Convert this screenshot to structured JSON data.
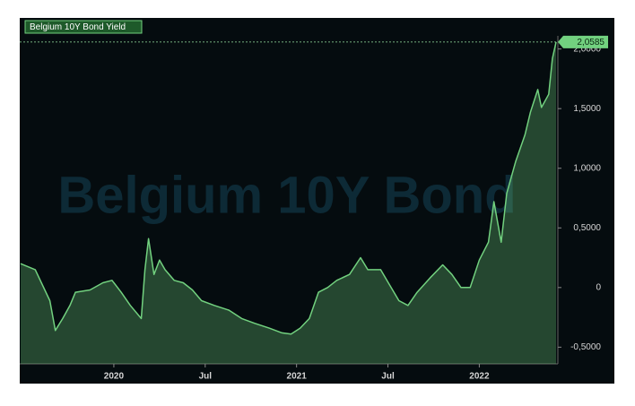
{
  "chart_data": {
    "type": "area",
    "watermark": "Belgium 10Y Bond",
    "series": [
      {
        "name": "Belgium 10Y Bond Yield",
        "color": "#72d17f",
        "x": [
          2019.49,
          2019.57,
          2019.65,
          2019.68,
          2019.72,
          2019.76,
          2019.79,
          2019.87,
          2019.94,
          2019.99,
          2020.04,
          2020.09,
          2020.15,
          2020.17,
          2020.19,
          2020.22,
          2020.25,
          2020.28,
          2020.33,
          2020.38,
          2020.43,
          2020.48,
          2020.55,
          2020.63,
          2020.7,
          2020.77,
          2020.85,
          2020.92,
          2020.97,
          2021.02,
          2021.07,
          2021.12,
          2021.17,
          2021.22,
          2021.29,
          2021.35,
          2021.39,
          2021.46,
          2021.51,
          2021.56,
          2021.61,
          2021.66,
          2021.73,
          2021.8,
          2021.85,
          2021.9,
          2021.95,
          2022.0,
          2022.05,
          2022.08,
          2022.12,
          2022.15,
          2022.2,
          2022.25,
          2022.28,
          2022.32,
          2022.34,
          2022.38,
          2022.4,
          2022.42
        ],
        "values": [
          0.2,
          0.15,
          -0.11,
          -0.36,
          -0.26,
          -0.15,
          -0.04,
          -0.02,
          0.04,
          0.06,
          -0.04,
          -0.15,
          -0.26,
          0.15,
          0.41,
          0.11,
          0.23,
          0.15,
          0.06,
          0.04,
          -0.02,
          -0.11,
          -0.15,
          -0.19,
          -0.26,
          -0.3,
          -0.34,
          -0.38,
          -0.39,
          -0.34,
          -0.26,
          -0.04,
          0.0,
          0.06,
          0.11,
          0.25,
          0.15,
          0.15,
          0.02,
          -0.11,
          -0.15,
          -0.04,
          0.08,
          0.19,
          0.11,
          0.0,
          0.0,
          0.23,
          0.38,
          0.72,
          0.38,
          0.79,
          1.06,
          1.28,
          1.47,
          1.66,
          1.51,
          1.62,
          1.92,
          2.0585
        ]
      }
    ],
    "last_price": {
      "value": 2.0585,
      "label": "2,0585"
    },
    "xlim": [
      2019.485,
      2022.43
    ],
    "xticks": [
      {
        "value": 2020,
        "label": "2020"
      },
      {
        "value": 2020.5,
        "label": "Jul"
      },
      {
        "value": 2021,
        "label": "2021"
      },
      {
        "value": 2021.5,
        "label": "Jul"
      },
      {
        "value": 2022,
        "label": "2022"
      }
    ],
    "ylim": [
      -0.64,
      2.11
    ],
    "yticks": [
      {
        "value": -0.5,
        "label": "-0,5000"
      },
      {
        "value": 0,
        "label": "0"
      },
      {
        "value": 0.5,
        "label": "0,5000"
      },
      {
        "value": 1,
        "label": "1,0000"
      },
      {
        "value": 1.5,
        "label": "1,5000"
      },
      {
        "value": 2,
        "label": "2,0000"
      }
    ]
  }
}
